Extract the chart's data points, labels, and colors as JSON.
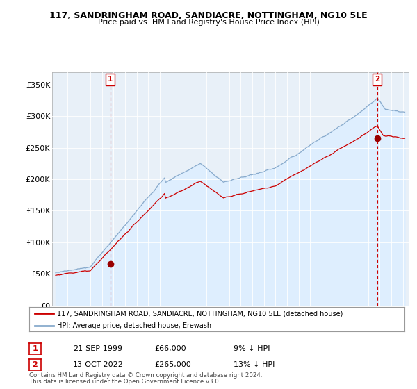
{
  "title": "117, SANDRINGHAM ROAD, SANDIACRE, NOTTINGHAM, NG10 5LE",
  "subtitle": "Price paid vs. HM Land Registry's House Price Index (HPI)",
  "ylabel_ticks": [
    "£0",
    "£50K",
    "£100K",
    "£150K",
    "£200K",
    "£250K",
    "£300K",
    "£350K"
  ],
  "ytick_values": [
    0,
    50000,
    100000,
    150000,
    200000,
    250000,
    300000,
    350000
  ],
  "ylim": [
    0,
    370000
  ],
  "xlim_start": 1994.7,
  "xlim_end": 2025.5,
  "sale1": {
    "date": 1999.72,
    "price": 66000,
    "label": "1",
    "note": "21-SEP-1999",
    "amount": "£66,000",
    "pct": "9% ↓ HPI"
  },
  "sale2": {
    "date": 2022.78,
    "price": 265000,
    "label": "2",
    "note": "13-OCT-2022",
    "amount": "£265,000",
    "pct": "13% ↓ HPI"
  },
  "line_color_red": "#cc0000",
  "line_color_blue": "#88aacc",
  "fill_color_blue": "#ddeeff",
  "dot_color_red": "#990000",
  "marker_box_color": "#cc0000",
  "legend_line1": "117, SANDRINGHAM ROAD, SANDIACRE, NOTTINGHAM, NG10 5LE (detached house)",
  "legend_line2": "HPI: Average price, detached house, Erewash",
  "footer1": "Contains HM Land Registry data © Crown copyright and database right 2024.",
  "footer2": "This data is licensed under the Open Government Licence v3.0.",
  "background_color": "#ffffff",
  "plot_bg_color": "#e8f0f8",
  "grid_color": "#ffffff"
}
